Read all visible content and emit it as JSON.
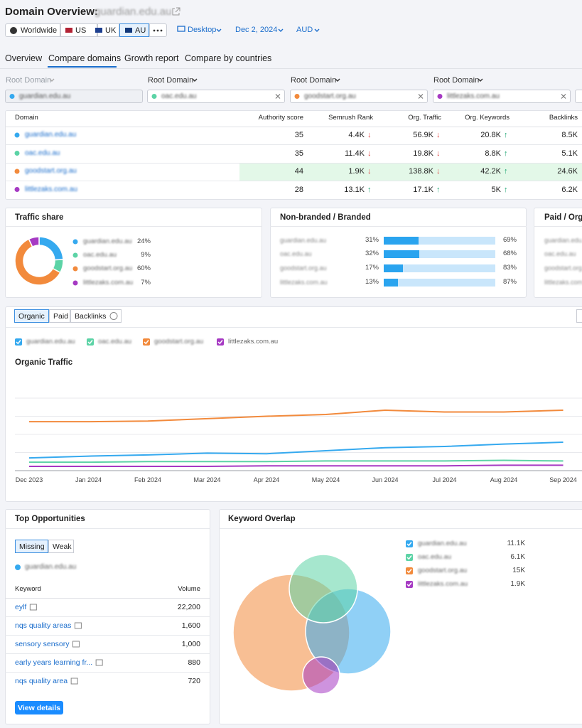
{
  "header": {
    "title": "Domain Overview:",
    "domain": "guardian.edu.au",
    "locations": [
      "Worldwide",
      "US",
      "UK",
      "AU"
    ],
    "active_location": 3,
    "device": "Desktop",
    "date": "Dec 2, 2024",
    "currency": "AUD"
  },
  "tabs": [
    "Overview",
    "Compare domains",
    "Growth report",
    "Compare by countries"
  ],
  "active_tab": 1,
  "root_domain_label": "Root Domain",
  "domains": [
    {
      "name": "guardian.edu.au",
      "color": "#35a9ef"
    },
    {
      "name": "oac.edu.au",
      "color": "#5cd3a6"
    },
    {
      "name": "goodstart.org.au",
      "color": "#f28a3c"
    },
    {
      "name": "littlezaks.com.au",
      "color": "#a63ac3"
    }
  ],
  "table": {
    "headers": [
      "Domain",
      "Authority score",
      "Semrush Rank",
      "Org. Traffic",
      "Org. Keywords",
      "Backlinks"
    ],
    "highlight_row": 2,
    "rows": [
      {
        "authority": 35,
        "rank": "4.4K",
        "rank_trend": "↓",
        "traffic": "56.9K",
        "traffic_trend": "↓",
        "keywords": "20.8K",
        "keywords_trend": "↑",
        "backlinks": "8.5K"
      },
      {
        "authority": 35,
        "rank": "11.4K",
        "rank_trend": "↓",
        "traffic": "19.8K",
        "traffic_trend": "↓",
        "keywords": "8.8K",
        "keywords_trend": "↑",
        "backlinks": "5.1K"
      },
      {
        "authority": 44,
        "rank": "1.9K",
        "rank_trend": "↓",
        "traffic": "138.8K",
        "traffic_trend": "↓",
        "keywords": "42.2K",
        "keywords_trend": "↑",
        "backlinks": "24.6K"
      },
      {
        "authority": 28,
        "rank": "13.1K",
        "rank_trend": "↑",
        "traffic": "17.1K",
        "traffic_trend": "↑",
        "keywords": "5K",
        "keywords_trend": "↑",
        "backlinks": "6.2K"
      }
    ]
  },
  "traffic_share": {
    "type": "pie",
    "title": "Traffic share",
    "values": [
      24,
      9,
      60,
      7
    ],
    "value_labels": [
      "24%",
      "9%",
      "60%",
      "7%"
    ]
  },
  "branded": {
    "type": "bar",
    "title": "Non-branded / Branded",
    "non_branded": [
      31,
      32,
      17,
      13
    ],
    "non_branded_labels": [
      "31%",
      "32%",
      "17%",
      "13%"
    ],
    "branded": [
      69,
      68,
      83,
      87
    ],
    "branded_labels": [
      "69%",
      "68%",
      "83%",
      "87%"
    ],
    "colors": [
      "#2aa4ef",
      "#c9e6fb"
    ]
  },
  "paid_organic": {
    "title": "Paid / Org"
  },
  "organic": {
    "buttons": [
      "Organic",
      "Paid",
      "Backlinks"
    ],
    "active_button": 0,
    "chart": {
      "type": "line",
      "title": "Organic Traffic",
      "x": [
        "Dec 2023",
        "Jan 2024",
        "Feb 2024",
        "Mar 2024",
        "Apr 2024",
        "May 2024",
        "Jun 2024",
        "Jul 2024",
        "Aug 2024",
        "Sep 2024"
      ],
      "ylim": [
        0,
        120
      ],
      "grid": true,
      "series": [
        {
          "name": "guardian.edu.au",
          "color": "#35a9ef",
          "values": [
            21,
            24,
            26,
            29,
            28,
            33,
            38,
            40,
            44,
            47
          ]
        },
        {
          "name": "oac.edu.au",
          "color": "#5cd3a6",
          "values": [
            14,
            14,
            15,
            15,
            15,
            16,
            16,
            16,
            17,
            16
          ]
        },
        {
          "name": "goodstart.org.au",
          "color": "#f28a3c",
          "values": [
            81,
            81,
            82,
            86,
            90,
            93,
            100,
            97,
            97,
            100
          ]
        },
        {
          "name": "littlezaks.com.au",
          "color": "#a63ac3",
          "values": [
            7,
            7,
            7,
            7,
            8,
            8,
            8,
            8,
            9,
            9
          ]
        }
      ]
    }
  },
  "opportunities": {
    "title": "Top Opportunities",
    "tabs": [
      "Missing",
      "Weak"
    ],
    "domain": "guardian.edu.au",
    "headers": [
      "Keyword",
      "Volume"
    ],
    "rows": [
      [
        "eylf",
        "22,200"
      ],
      [
        "nqs quality areas",
        "1,600"
      ],
      [
        "sensory sensory",
        "1,000"
      ],
      [
        "early years learning fr...",
        "880"
      ],
      [
        "nqs quality area",
        "720"
      ]
    ],
    "button": "View details"
  },
  "overlap": {
    "title": "Keyword Overlap",
    "values": [
      "11.1K",
      "6.1K",
      "15K",
      "1.9K"
    ]
  }
}
